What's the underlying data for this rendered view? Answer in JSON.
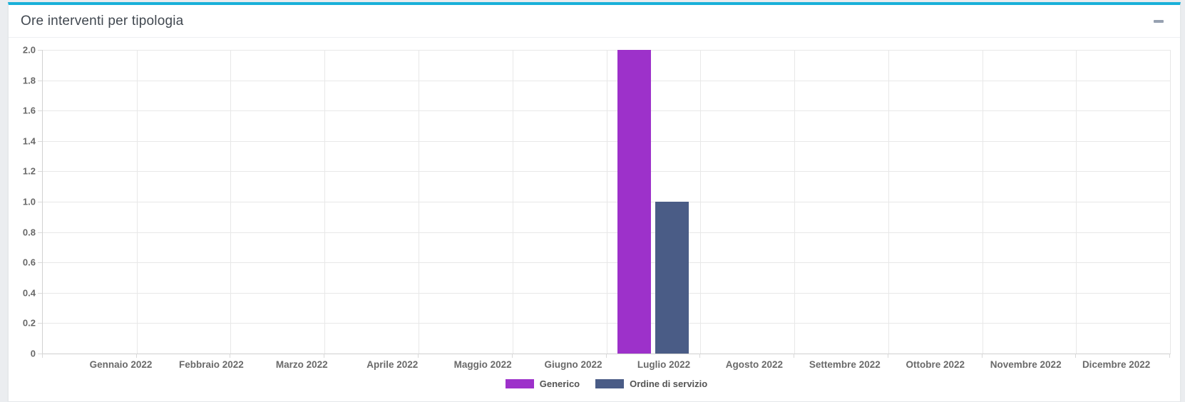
{
  "panel": {
    "title": "Ore interventi per tipologia"
  },
  "chart_data": {
    "type": "bar",
    "title": "Ore interventi per tipologia",
    "categories": [
      "Gennaio 2022",
      "Febbraio 2022",
      "Marzo 2022",
      "Aprile 2022",
      "Maggio 2022",
      "Giugno 2022",
      "Luglio 2022",
      "Agosto 2022",
      "Settembre 2022",
      "Ottobre 2022",
      "Novembre 2022",
      "Dicembre 2022"
    ],
    "series": [
      {
        "name": "Generico",
        "color": "#9d31ca",
        "values": [
          0,
          0,
          0,
          0,
          0,
          0,
          2,
          0,
          0,
          0,
          0,
          0
        ]
      },
      {
        "name": "Ordine di servizio",
        "color": "#4a5c86",
        "values": [
          0,
          0,
          0,
          0,
          0,
          0,
          1,
          0,
          0,
          0,
          0,
          0
        ]
      }
    ],
    "xlabel": "",
    "ylabel": "",
    "ylim": [
      0,
      2.0
    ],
    "ytick_step": 0.2,
    "ytick_labels": [
      "0",
      "0.2",
      "0.4",
      "0.6",
      "0.8",
      "1.0",
      "1.2",
      "1.4",
      "1.6",
      "1.8",
      "2.0"
    ],
    "grid": true,
    "legend_position": "bottom"
  },
  "colors": {
    "accent_top": "#19b0d9",
    "card_background": "#ffffff",
    "page_background": "#ebedf0",
    "gridline": "#e8e8e8",
    "tick_text": "#686868"
  }
}
